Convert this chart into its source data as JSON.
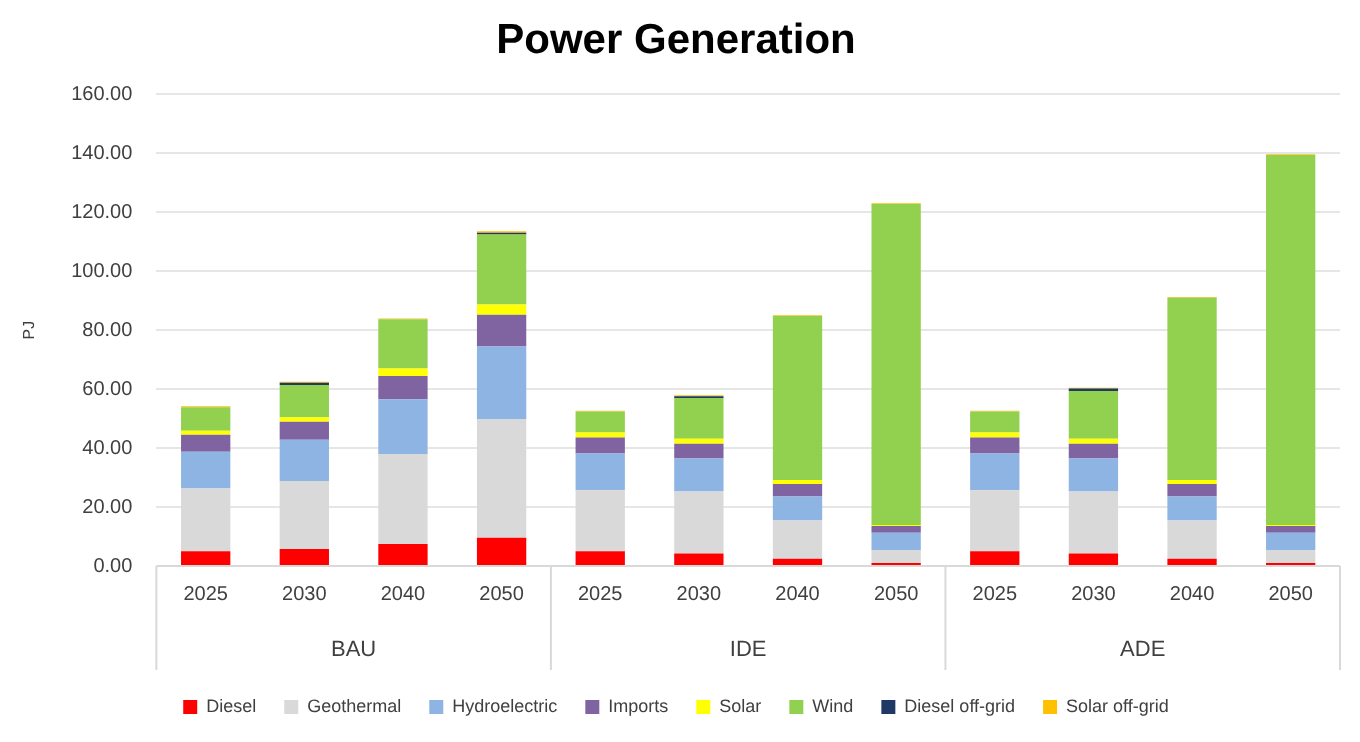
{
  "chart_data": {
    "type": "bar",
    "title": "Power Generation",
    "ylabel": "PJ",
    "stacked": true,
    "categories": [
      "2025",
      "2030",
      "2040",
      "2050",
      "2025",
      "2030",
      "2040",
      "2050",
      "2025",
      "2030",
      "2040",
      "2050"
    ],
    "annotations": [
      "BAU",
      "IDE",
      "ADE"
    ],
    "series": [
      {
        "name": "Diesel",
        "color": "#ff0000",
        "values": [
          5.0,
          5.8,
          7.5,
          9.6,
          5.0,
          4.2,
          2.5,
          1.0,
          5.0,
          4.2,
          2.5,
          1.0
        ]
      },
      {
        "name": "Geothermal",
        "color": "#d9d9d9",
        "values": [
          21.3,
          23.0,
          30.5,
          40.3,
          20.7,
          21.1,
          12.9,
          4.4,
          20.7,
          21.1,
          12.9,
          4.4
        ]
      },
      {
        "name": "Hydroelectric",
        "color": "#8db4e2",
        "values": [
          12.5,
          14.0,
          18.6,
          24.6,
          12.5,
          11.2,
          8.2,
          5.9,
          12.5,
          11.2,
          8.2,
          5.9
        ]
      },
      {
        "name": "Imports",
        "color": "#8064a2",
        "values": [
          5.7,
          6.1,
          7.9,
          10.7,
          5.4,
          5.0,
          4.2,
          2.3,
          5.4,
          5.0,
          4.2,
          2.3
        ]
      },
      {
        "name": "Solar",
        "color": "#ffff00",
        "values": [
          1.4,
          1.6,
          2.5,
          3.5,
          1.7,
          1.7,
          1.4,
          0.3,
          1.7,
          1.7,
          1.4,
          0.3
        ]
      },
      {
        "name": "Wind",
        "color": "#92d050",
        "values": [
          8.0,
          10.9,
          16.7,
          23.8,
          7.1,
          13.8,
          55.6,
          108.9,
          7.1,
          16.2,
          61.8,
          125.5
        ]
      },
      {
        "name": "Diesel off-grid",
        "color": "#1f3864",
        "values": [
          null,
          0.8,
          null,
          0.6,
          null,
          0.6,
          null,
          null,
          null,
          0.8,
          null,
          null
        ]
      },
      {
        "name": "Solar off-grid",
        "color": "#ffc000",
        "values": [
          0.3,
          0.3,
          0.3,
          0.5,
          0.3,
          0.3,
          0.3,
          0.3,
          0.3,
          0.3,
          0.3,
          0.3
        ]
      }
    ],
    "ylim": [
      0,
      160
    ],
    "yticks": [
      {
        "value": 0,
        "label": "0.00"
      },
      {
        "value": 20,
        "label": "20.00"
      },
      {
        "value": 40,
        "label": "40.00"
      },
      {
        "value": 60,
        "label": "60.00"
      },
      {
        "value": 80,
        "label": "80.00"
      },
      {
        "value": 100,
        "label": "100.00"
      },
      {
        "value": 120,
        "label": "120.00"
      },
      {
        "value": 140,
        "label": "140.00"
      },
      {
        "value": 160,
        "label": "160.00"
      }
    ],
    "grid": "y",
    "legend": "bottom"
  }
}
